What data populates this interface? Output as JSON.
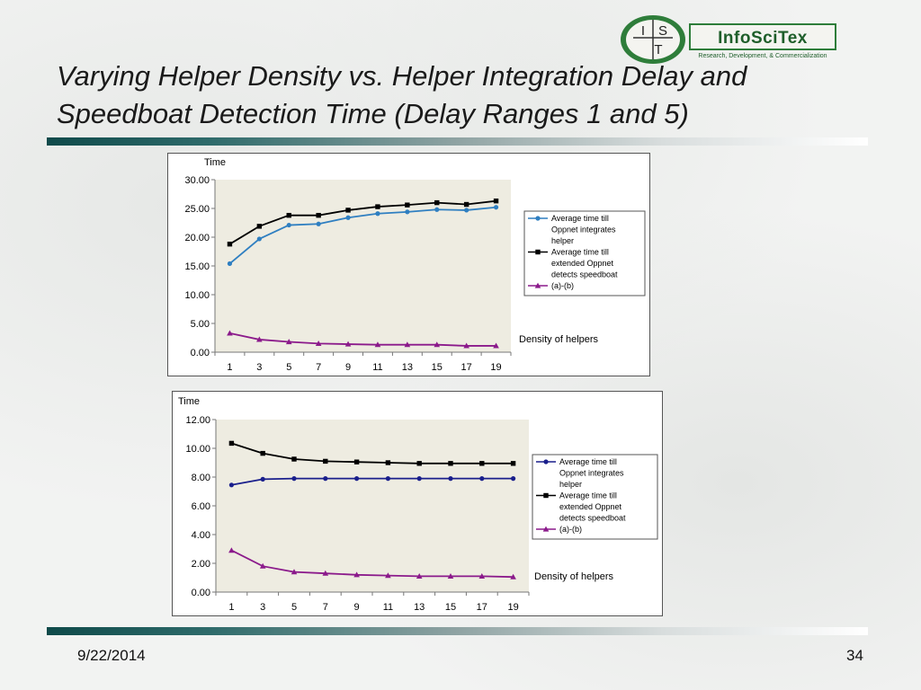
{
  "slide": {
    "title_line1": "Varying Helper Density vs. Helper Integration Delay and",
    "title_line2": "Speedboat Detection Time (Delay Ranges 1 and 5)",
    "date": "9/22/2014",
    "page_number": "34"
  },
  "logo": {
    "letters": [
      "I",
      "S",
      "T"
    ],
    "name": "InfoSciTex",
    "tagline": "Research, Development, & Commercialization"
  },
  "colors": {
    "series_blue_1": "#2f7fc1",
    "series_blue_2": "#1a1f8c",
    "series_black": "#000000",
    "series_purple": "#8b1a8b",
    "plot_bg": "#eeece1",
    "rule_dark": "#0f4a4a"
  },
  "chart_data": [
    {
      "type": "line",
      "title": "",
      "ylabel": "Time",
      "xlabel": "Density of helpers",
      "categories": [
        "1",
        "3",
        "5",
        "7",
        "9",
        "11",
        "13",
        "15",
        "17",
        "19"
      ],
      "ylim": [
        0,
        30
      ],
      "ytick_labels": [
        "0.00",
        "5.00",
        "10.00",
        "15.00",
        "20.00",
        "25.00",
        "30.00"
      ],
      "legend_position": "right",
      "grid": false,
      "series": [
        {
          "name": "Average time till Oppnet integrates helper",
          "marker": "circle",
          "color": "#2f7fc1",
          "values": [
            15.4,
            19.7,
            22.1,
            22.3,
            23.4,
            24.1,
            24.4,
            24.8,
            24.7,
            25.2
          ]
        },
        {
          "name": "Average time till extended Oppnet detects speedboat",
          "marker": "square",
          "color": "#000000",
          "values": [
            18.8,
            21.9,
            23.8,
            23.8,
            24.7,
            25.3,
            25.6,
            26.0,
            25.7,
            26.3
          ]
        },
        {
          "name": "(a)-(b)",
          "marker": "triangle",
          "color": "#8b1a8b",
          "values": [
            3.3,
            2.2,
            1.8,
            1.5,
            1.4,
            1.3,
            1.3,
            1.3,
            1.1,
            1.1
          ]
        }
      ]
    },
    {
      "type": "line",
      "title": "",
      "ylabel": "Time",
      "xlabel": "Density of helpers",
      "categories": [
        "1",
        "3",
        "5",
        "7",
        "9",
        "11",
        "13",
        "15",
        "17",
        "19"
      ],
      "ylim": [
        0,
        12
      ],
      "ytick_labels": [
        "0.00",
        "2.00",
        "4.00",
        "6.00",
        "8.00",
        "10.00",
        "12.00"
      ],
      "legend_position": "right",
      "grid": false,
      "series": [
        {
          "name": "Average time till Oppnet integrates helper",
          "marker": "circle",
          "color": "#1a1f8c",
          "values": [
            7.45,
            7.85,
            7.9,
            7.9,
            7.9,
            7.9,
            7.9,
            7.9,
            7.9,
            7.9
          ]
        },
        {
          "name": "Average time till extended Oppnet detects speedboat",
          "marker": "square",
          "color": "#000000",
          "values": [
            10.35,
            9.65,
            9.25,
            9.1,
            9.05,
            9.0,
            8.95,
            8.95,
            8.95,
            8.95
          ]
        },
        {
          "name": "(a)-(b)",
          "marker": "triangle",
          "color": "#8b1a8b",
          "values": [
            2.9,
            1.8,
            1.4,
            1.3,
            1.2,
            1.15,
            1.1,
            1.1,
            1.1,
            1.05
          ]
        }
      ]
    }
  ]
}
